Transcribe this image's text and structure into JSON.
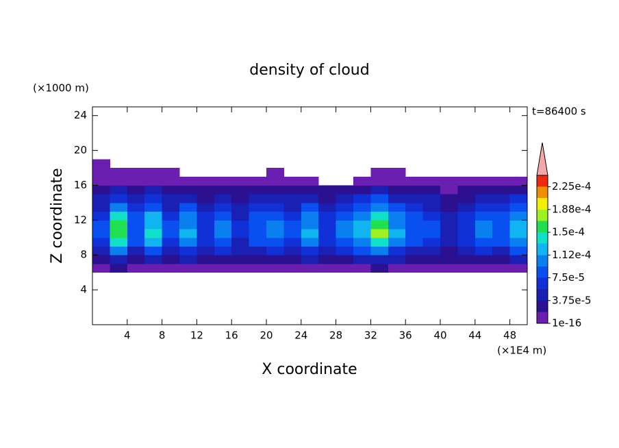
{
  "chart_data": {
    "type": "heatmap",
    "title": "density of cloud",
    "x_label": "X coordinate",
    "y_label": "Z coordinate",
    "x_unit": "(×1E4 m)",
    "y_unit": "(×1000 m)",
    "annotation": "t=86400 s",
    "xlim": [
      0,
      50
    ],
    "ylim": [
      0,
      25
    ],
    "xticks": [
      4,
      8,
      12,
      16,
      20,
      24,
      28,
      32,
      36,
      40,
      44,
      48
    ],
    "yticks": [
      4,
      8,
      12,
      16,
      20,
      24
    ],
    "x": [
      1,
      3,
      5,
      7,
      9,
      11,
      13,
      15,
      17,
      19,
      21,
      23,
      25,
      27,
      29,
      31,
      33,
      35,
      37,
      39,
      41,
      43,
      45,
      47,
      49
    ],
    "z": [
      6.5,
      7.5,
      8.5,
      9.5,
      10.5,
      11.5,
      12.5,
      13.5,
      14.5,
      15.5,
      16.5,
      17.5,
      18.5
    ],
    "values": [
      [
        1e-05,
        2e-05,
        1e-05,
        1e-05,
        1e-05,
        1e-05,
        1e-05,
        1e-05,
        1e-05,
        1e-05,
        1e-05,
        1e-05,
        1e-05,
        1e-05,
        1e-05,
        1e-05,
        2e-05,
        1e-05,
        1e-05,
        1e-05,
        1e-05,
        1e-05,
        1e-05,
        1e-05,
        1e-05
      ],
      [
        2e-05,
        5e-05,
        3e-05,
        4e-05,
        2e-05,
        4e-05,
        2e-05,
        3e-05,
        2e-05,
        3e-05,
        3e-05,
        2e-05,
        4e-05,
        2e-05,
        3e-05,
        4e-05,
        5e-05,
        4e-05,
        3e-05,
        2e-05,
        2e-05,
        2e-05,
        3e-05,
        3e-05,
        4e-05
      ],
      [
        5e-05,
        0.0001,
        5e-05,
        8e-05,
        5e-05,
        7e-05,
        4e-05,
        6e-05,
        4e-05,
        5e-05,
        7e-05,
        5e-05,
        7e-05,
        4e-05,
        7e-05,
        8e-05,
        0.0001,
        7e-05,
        5e-05,
        5e-05,
        3e-05,
        4e-05,
        7e-05,
        5e-05,
        8e-05
      ],
      [
        7e-05,
        0.00014,
        8e-05,
        0.00012,
        7e-05,
        0.0001,
        6e-05,
        9e-05,
        5e-05,
        8e-05,
        9e-05,
        7e-05,
        0.0001,
        6e-05,
        9e-05,
        0.00011,
        0.00014,
        0.0001,
        8e-05,
        7e-05,
        4e-05,
        6e-05,
        9e-05,
        8e-05,
        0.00011
      ],
      [
        8e-05,
        0.00016,
        9e-05,
        0.00014,
        8e-05,
        0.00012,
        7e-05,
        0.0001,
        6e-05,
        9e-05,
        0.00011,
        8e-05,
        0.00012,
        7e-05,
        0.00011,
        0.00013,
        0.00017,
        0.00012,
        9e-05,
        8e-05,
        5e-05,
        7e-05,
        0.00011,
        9e-05,
        0.00013
      ],
      [
        8e-05,
        0.00015,
        9e-05,
        0.00013,
        8e-05,
        0.00011,
        7e-05,
        0.0001,
        6e-05,
        9e-05,
        0.0001,
        8e-05,
        0.00011,
        7e-05,
        0.0001,
        0.00012,
        0.00016,
        0.00011,
        9e-05,
        8e-05,
        5e-05,
        7e-05,
        0.0001,
        9e-05,
        0.00012
      ],
      [
        7e-05,
        0.00014,
        8e-05,
        0.00012,
        7e-05,
        0.0001,
        6e-05,
        9e-05,
        5e-05,
        8e-05,
        9e-05,
        7e-05,
        0.0001,
        6e-05,
        9e-05,
        0.00011,
        0.00014,
        0.0001,
        8e-05,
        7e-05,
        4e-05,
        6e-05,
        9e-05,
        8e-05,
        0.00011
      ],
      [
        5e-05,
        0.0001,
        6e-05,
        9e-05,
        5e-05,
        8e-05,
        5e-05,
        7e-05,
        4e-05,
        6e-05,
        7e-05,
        5e-05,
        8e-05,
        5e-05,
        7e-05,
        8e-05,
        0.00011,
        8e-05,
        6e-05,
        5e-05,
        3e-05,
        5e-05,
        7e-05,
        6e-05,
        8e-05
      ],
      [
        4e-05,
        7e-05,
        4e-05,
        6e-05,
        4e-05,
        5e-05,
        3e-05,
        5e-05,
        3e-05,
        4e-05,
        5e-05,
        4e-05,
        5e-05,
        3e-05,
        5e-05,
        6e-05,
        8e-05,
        5e-05,
        4e-05,
        4e-05,
        2e-05,
        3e-05,
        5e-05,
        4e-05,
        6e-05
      ],
      [
        2e-05,
        4e-05,
        2e-05,
        4e-05,
        2e-05,
        3e-05,
        2e-05,
        3e-05,
        2e-05,
        2e-05,
        3e-05,
        2e-05,
        3e-05,
        2e-05,
        3e-05,
        3e-05,
        4e-05,
        3e-05,
        2e-05,
        2e-05,
        1e-05,
        2e-05,
        3e-05,
        2e-05,
        3e-05
      ],
      [
        1e-05,
        1e-05,
        1e-05,
        1e-05,
        1e-05,
        1e-05,
        1e-05,
        1e-05,
        1e-05,
        1e-05,
        1e-05,
        1e-05,
        1e-05,
        0,
        0,
        1e-05,
        1e-05,
        1e-05,
        1e-05,
        1e-05,
        1e-05,
        1e-05,
        1e-05,
        1e-05,
        1e-05
      ],
      [
        1e-05,
        1e-05,
        1e-05,
        1e-05,
        1e-05,
        0,
        0,
        0,
        0,
        0,
        1e-05,
        0,
        0,
        0,
        0,
        0,
        1e-05,
        1e-05,
        0,
        0,
        0,
        0,
        0,
        0,
        0
      ],
      [
        1e-05,
        0,
        0,
        0,
        0,
        0,
        0,
        0,
        0,
        0,
        0,
        0,
        0,
        0,
        0,
        0,
        0,
        0,
        0,
        0,
        0,
        0,
        0,
        0,
        0
      ]
    ],
    "levels": [
      1e-16,
      1.875e-05,
      3.75e-05,
      5.625e-05,
      7.5e-05,
      9.375e-05,
      0.0001125,
      0.00013125,
      0.00015,
      0.00016875,
      0.0001875,
      0.00020625,
      0.000225,
      0.00024375
    ],
    "colors": [
      "#6a1fb0",
      "#2b1190",
      "#1a20b4",
      "#1030d8",
      "#0a50f0",
      "#0a80f0",
      "#10b4f0",
      "#10e0c8",
      "#20e050",
      "#a0f020",
      "#f0f000",
      "#f09000",
      "#f02a10"
    ],
    "extend_color": "#f4a8a8",
    "colorbar_ticks": [
      1e-16,
      {
        "value": 3.75e-05,
        "label": "3.75e-5"
      },
      {
        "value": 7.5e-05,
        "label": "7.5e-5"
      },
      {
        "value": 0.0001125,
        "label": "1.12e-4"
      },
      {
        "value": 0.00015,
        "label": "1.5e-4"
      },
      {
        "value": 0.0001875,
        "label": "1.88e-4"
      },
      {
        "value": 0.000225,
        "label": "2.25e-4"
      }
    ]
  }
}
